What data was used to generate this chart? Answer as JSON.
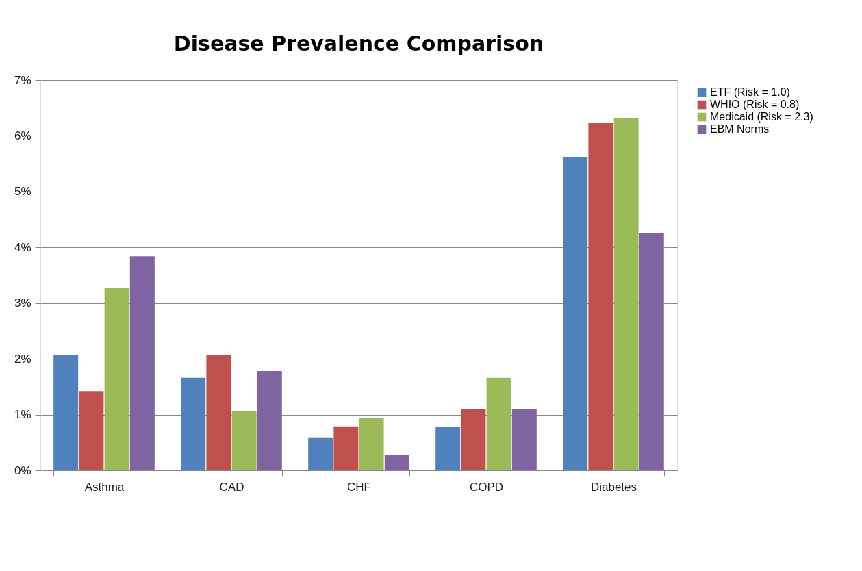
{
  "chart_data": {
    "type": "bar",
    "title": "Disease Prevalence Comparison",
    "categories": [
      "Asthma",
      "CAD",
      "CHF",
      "COPD",
      "Diabetes"
    ],
    "series": [
      {
        "name": "ETF (Risk = 1.0)",
        "color": "#4f81bd",
        "values": [
          2.07,
          1.66,
          0.58,
          0.78,
          5.62
        ]
      },
      {
        "name": "WHIO (Risk = 0.8)",
        "color": "#c0504d",
        "values": [
          1.42,
          2.07,
          0.79,
          1.1,
          6.23
        ]
      },
      {
        "name": "Medicaid (Risk = 2.3)",
        "color": "#9bbb59",
        "values": [
          3.27,
          1.06,
          0.94,
          1.66,
          6.32
        ]
      },
      {
        "name": "EBM Norms",
        "color": "#8064a2",
        "values": [
          3.84,
          1.78,
          0.27,
          1.1,
          4.26
        ]
      }
    ],
    "ylim": [
      0,
      7
    ],
    "yticks": [
      {
        "value": 0,
        "label": "0%"
      },
      {
        "value": 1,
        "label": "1%"
      },
      {
        "value": 2,
        "label": "2%"
      },
      {
        "value": 3,
        "label": "3%"
      },
      {
        "value": 4,
        "label": "4%"
      },
      {
        "value": 5,
        "label": "5%"
      },
      {
        "value": 6,
        "label": "6%"
      },
      {
        "value": 7,
        "label": "7%"
      }
    ],
    "grid": "y",
    "legend": "right"
  }
}
